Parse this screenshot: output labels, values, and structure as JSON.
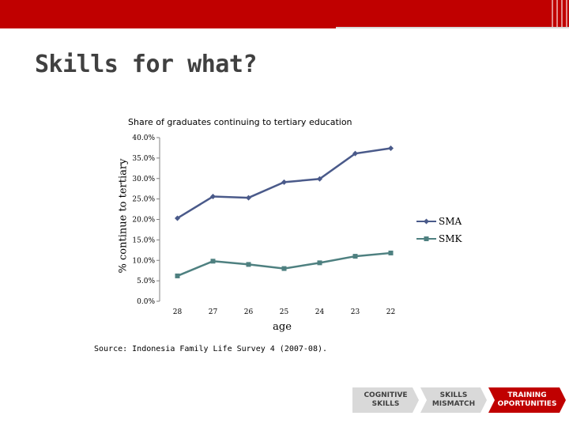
{
  "slide": {
    "title": "Skills for what?",
    "source": "Source: Indonesia Family Life Survey 4 (2007-08)."
  },
  "steps": [
    {
      "label": "COGNITIVE\nSKILLS",
      "color": "#d9d9d9",
      "text_color": "#404040"
    },
    {
      "label": "SKILLS\nMISMATCH",
      "color": "#d9d9d9",
      "text_color": "#404040"
    },
    {
      "label": "TRAINING\nOPORTUNITIES",
      "color": "#c00000",
      "text_color": "#ffffff"
    }
  ],
  "chart_data": {
    "type": "line",
    "title": "Share of graduates continuing to tertiary education",
    "xlabel": "age",
    "ylabel": "% continue to tertiary",
    "categories": [
      "28",
      "27",
      "26",
      "25",
      "24",
      "23",
      "22"
    ],
    "ylim": [
      0,
      40
    ],
    "y_ticks": [
      "0.0%",
      "5.0%",
      "10.0%",
      "15.0%",
      "20.0%",
      "25.0%",
      "30.0%",
      "35.0%",
      "40.0%"
    ],
    "grid": false,
    "legend_position": "right",
    "series": [
      {
        "name": "SMA",
        "color": "#4a5a8a",
        "marker": "diamond",
        "values": [
          20.3,
          25.6,
          25.3,
          29.1,
          29.9,
          36.1,
          37.4
        ]
      },
      {
        "name": "SMK",
        "color": "#4e8080",
        "marker": "square",
        "values": [
          6.2,
          9.8,
          9.0,
          8.0,
          9.4,
          11.0,
          11.8
        ]
      }
    ]
  }
}
